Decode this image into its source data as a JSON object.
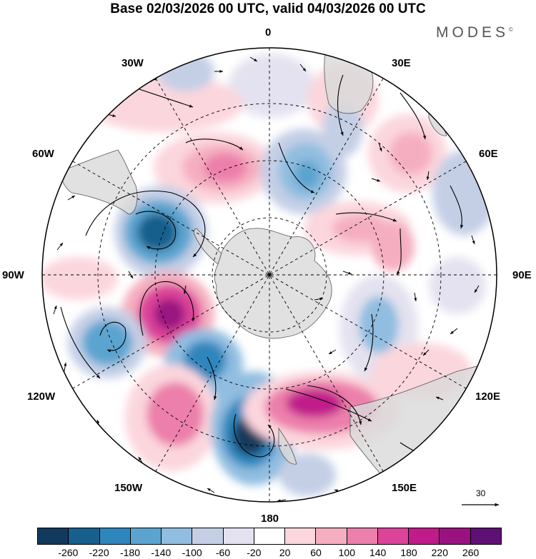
{
  "title": "Base 02/03/2026 00 UTC, valid 04/03/2026 00 UTC",
  "brand": "MODES",
  "brand_mark": "©",
  "longitude_labels": {
    "top": "0",
    "top_right": "30E",
    "right_upper": "60E",
    "right": "90E",
    "right_lower": "120E",
    "bottom_right": "150E",
    "bottom": "180",
    "bottom_left": "150W",
    "left_lower": "120W",
    "left": "90W",
    "left_upper": "60W",
    "top_left": "30W"
  },
  "reference_vector_label": "30",
  "colorbar": {
    "colors": [
      "#123a5c",
      "#175f8c",
      "#2f86bd",
      "#5ba4d0",
      "#90bde0",
      "#c4cfe6",
      "#e4e2f0",
      "#ffffff",
      "#fbd6dd",
      "#f5aec0",
      "#ec7fab",
      "#dc4399",
      "#c01b8a",
      "#9a1280",
      "#5f1075"
    ],
    "tick_labels": [
      "-260",
      "-220",
      "-180",
      "-140",
      "-100",
      "-60",
      "-20",
      "20",
      "60",
      "100",
      "140",
      "180",
      "220",
      "260"
    ]
  }
}
